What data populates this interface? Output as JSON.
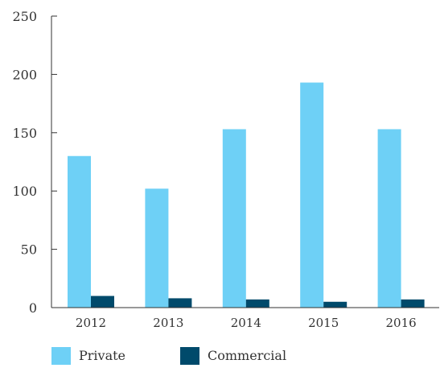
{
  "chart_data": {
    "type": "bar",
    "title": "",
    "xlabel": "",
    "ylabel": "",
    "categories": [
      "2012",
      "2013",
      "2014",
      "2015",
      "2016"
    ],
    "series": [
      {
        "name": "Private",
        "values": [
          130,
          102,
          153,
          193,
          153
        ],
        "color": "#6ed0f6"
      },
      {
        "name": "Commercial",
        "values": [
          10,
          8,
          7,
          5,
          7
        ],
        "color": "#004a6b"
      }
    ],
    "ylim": [
      0,
      250
    ],
    "yticks": [
      0,
      50,
      100,
      150,
      200,
      250
    ],
    "grid": false,
    "legend_position": "bottom-left"
  }
}
